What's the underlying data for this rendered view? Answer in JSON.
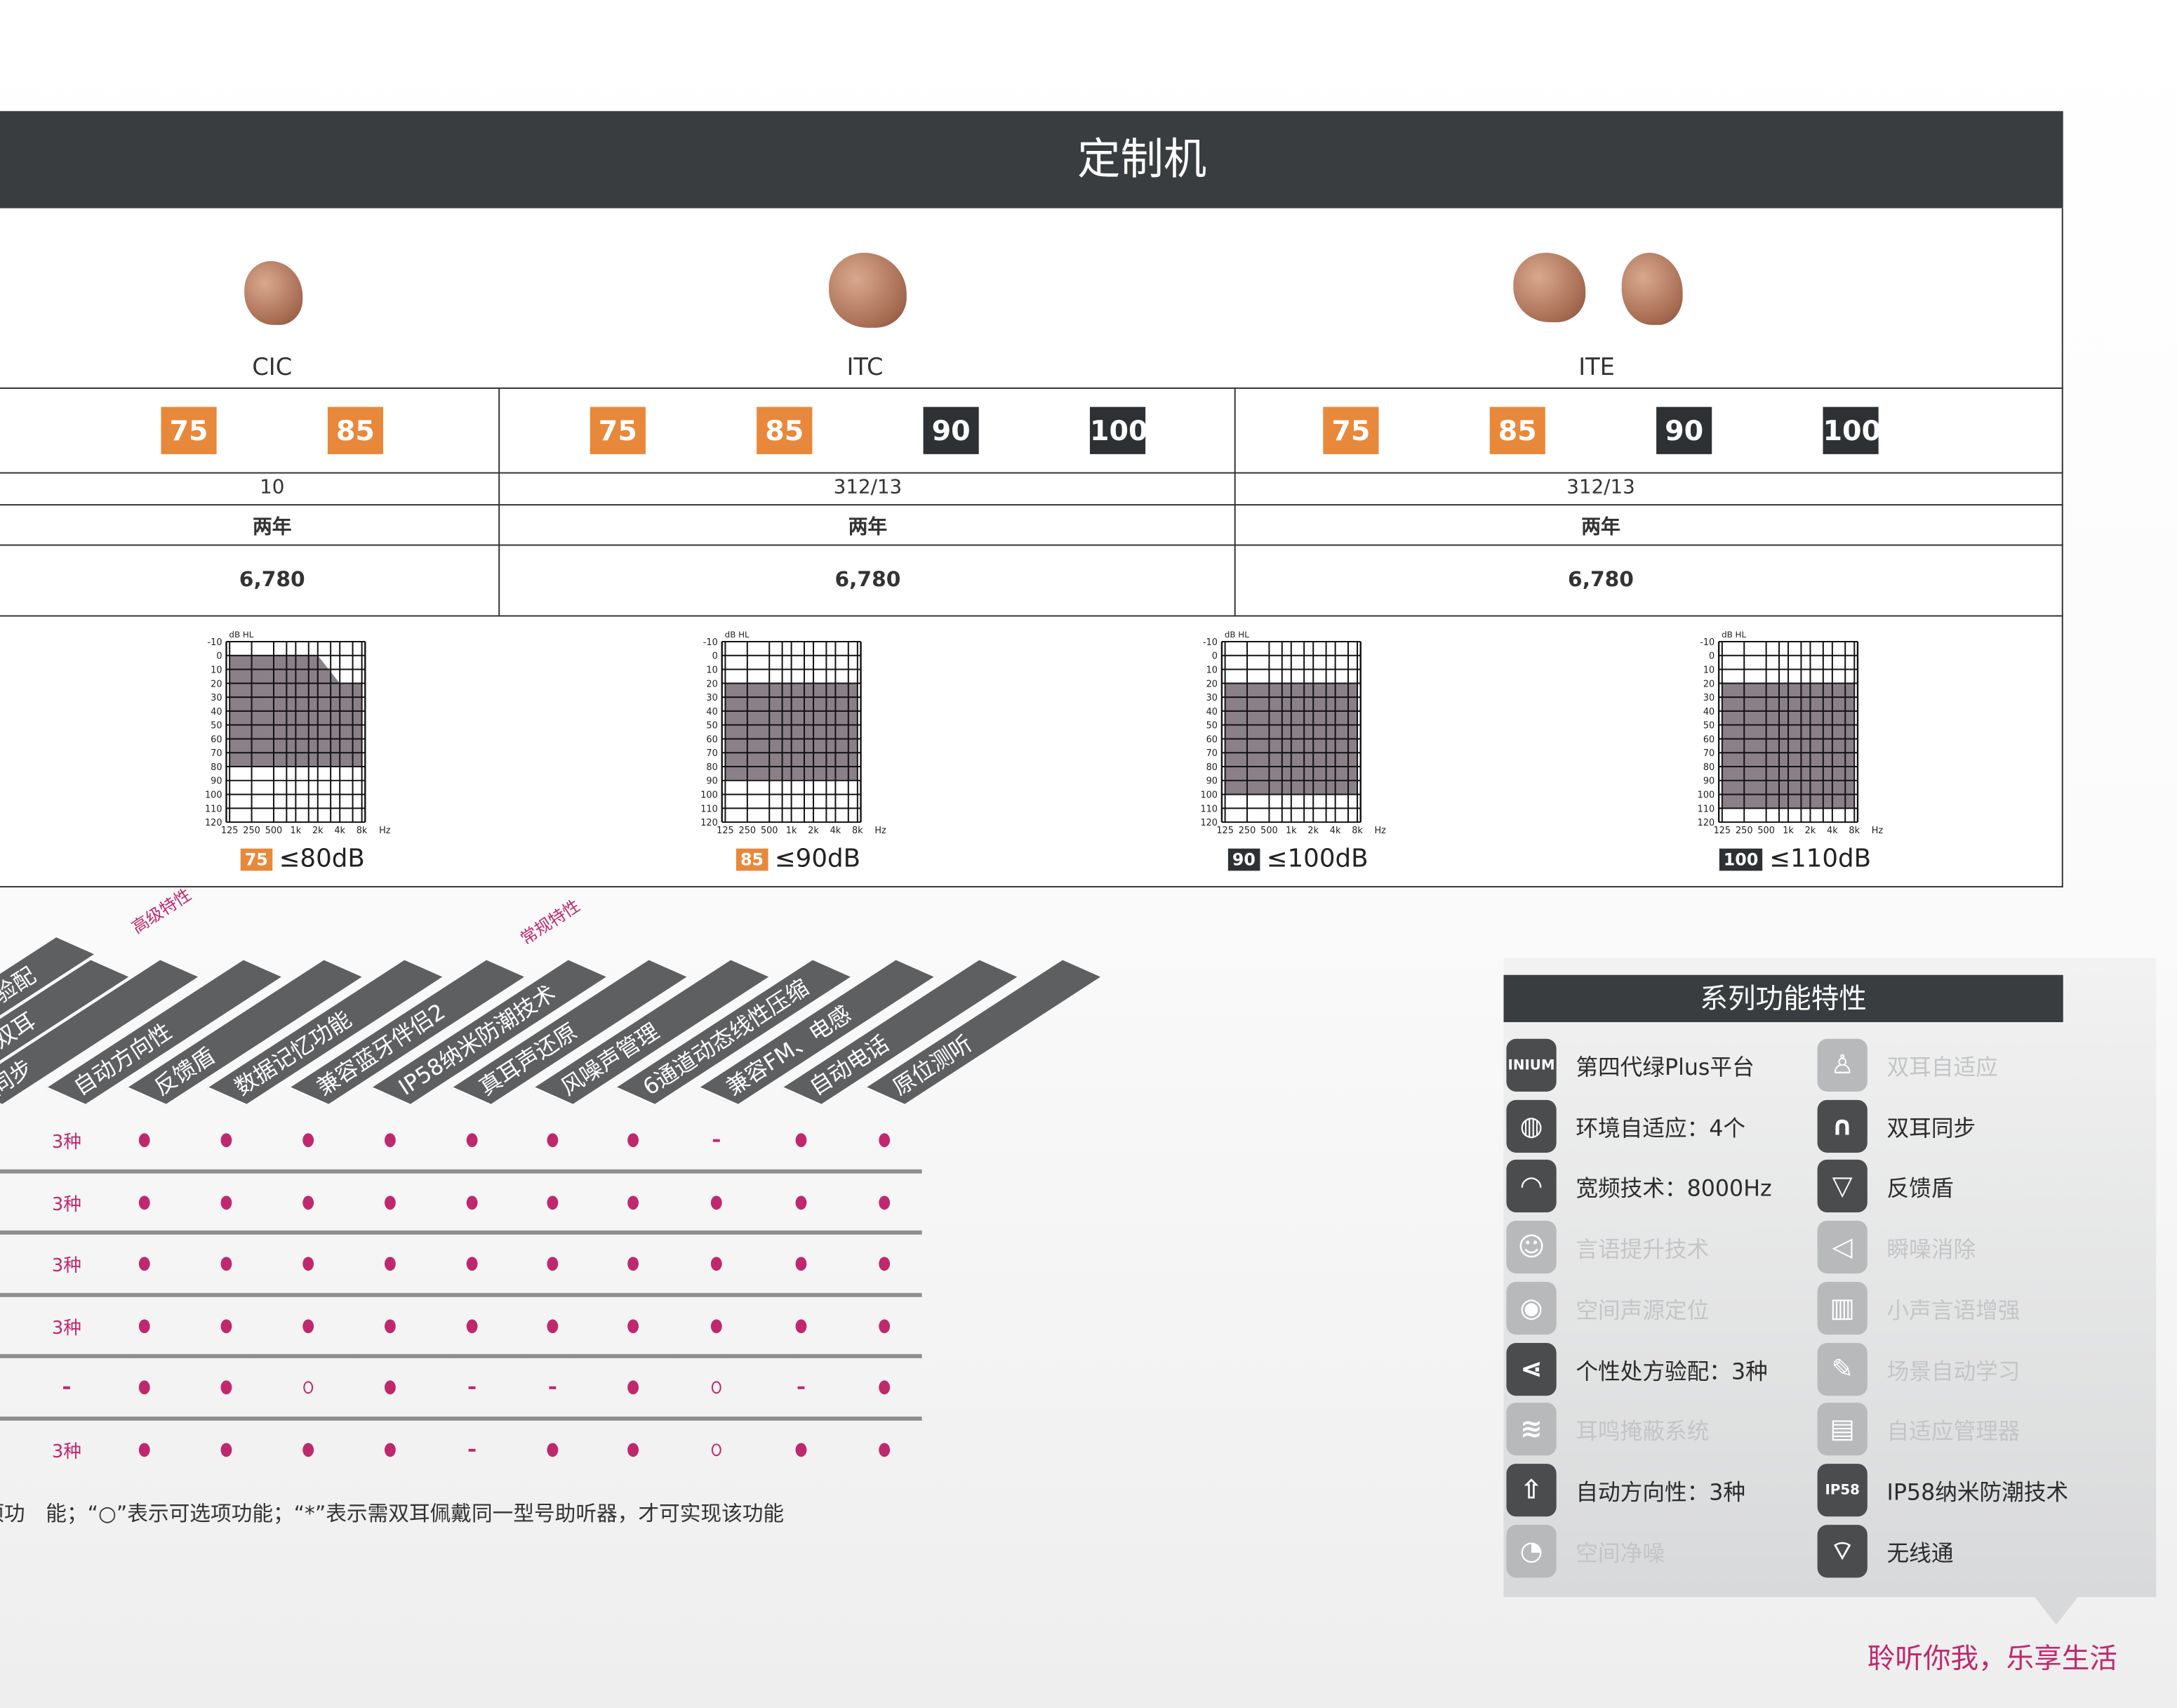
{
  "header": {
    "title": "定制机"
  },
  "products": [
    {
      "name": "CIC",
      "badges": [
        {
          "v": "75",
          "c": "orange"
        },
        {
          "v": "85",
          "c": "orange"
        }
      ],
      "battery": "10",
      "warranty": "两年",
      "price": "6,780"
    },
    {
      "name": "ITC",
      "badges": [
        {
          "v": "75",
          "c": "orange"
        },
        {
          "v": "85",
          "c": "orange"
        },
        {
          "v": "90",
          "c": "dark"
        },
        {
          "v": "100",
          "c": "dark"
        }
      ],
      "battery": "312/13",
      "warranty": "两年",
      "price": "6,780"
    },
    {
      "name": "ITE",
      "badges": [
        {
          "v": "75",
          "c": "orange"
        },
        {
          "v": "85",
          "c": "orange"
        },
        {
          "v": "90",
          "c": "dark"
        },
        {
          "v": "100",
          "c": "dark"
        }
      ],
      "battery": "312/13",
      "warranty": "两年",
      "price": "6,780"
    }
  ],
  "colors": {
    "orange": "#e8883a",
    "dark": "#2e3133",
    "accent": "#c0286e",
    "header": "#3a3d3f",
    "fill": "#8a8088"
  },
  "audiograms": {
    "unit_label": "dB HL",
    "hz_label": "Hz",
    "y_ticks": [
      "-10",
      "0",
      "10",
      "20",
      "30",
      "40",
      "50",
      "60",
      "70",
      "80",
      "90",
      "100",
      "110",
      "120"
    ],
    "x_ticks": [
      "125",
      "250",
      "500",
      "1k",
      "2k",
      "4k",
      "8k"
    ],
    "items": [
      {
        "badge": "75",
        "badge_color": "orange",
        "label": "≤80dB",
        "fill_top": [
          [
            125,
            0
          ],
          [
            2000,
            0
          ],
          [
            4000,
            20
          ],
          [
            8000,
            20
          ]
        ],
        "fill_bottom": 80
      },
      {
        "badge": "85",
        "badge_color": "orange",
        "label": "≤90dB",
        "fill_top": [
          [
            125,
            20
          ],
          [
            8000,
            20
          ]
        ],
        "fill_bottom": 90
      },
      {
        "badge": "90",
        "badge_color": "dark",
        "label": "≤100dB",
        "fill_top": [
          [
            125,
            20
          ],
          [
            8000,
            20
          ]
        ],
        "fill_bottom": 100
      },
      {
        "badge": "100",
        "badge_color": "dark",
        "label": "≤110dB",
        "fill_top": [
          [
            125,
            20
          ],
          [
            8000,
            20
          ]
        ],
        "fill_bottom": 110
      }
    ]
  },
  "features_table": {
    "group_labels": [
      "高级特性",
      "常规特性"
    ],
    "headers": [
      "验配",
      "双耳",
      "同步",
      "自动方向性",
      "反馈盾",
      "数据记忆功能",
      "兼容蓝牙伴侣2",
      "IP58纳米防潮技术",
      "真耳声还原",
      "风噪声管理",
      "6通道动态线性压缩",
      "兼容FM、电感",
      "自动电话",
      "原位测听"
    ],
    "rows": [
      [
        "3种",
        "●",
        "●",
        "●",
        "●",
        "●",
        "●",
        "●",
        "-",
        "●",
        "●"
      ],
      [
        "3种",
        "●",
        "●",
        "●",
        "●",
        "●",
        "●",
        "●",
        "●",
        "●",
        "●"
      ],
      [
        "3种",
        "●",
        "●",
        "●",
        "●",
        "●",
        "●",
        "●",
        "●",
        "●",
        "●"
      ],
      [
        "3种",
        "●",
        "●",
        "●",
        "●",
        "●",
        "●",
        "●",
        "●",
        "●",
        "●"
      ],
      [
        "-",
        "●",
        "●",
        "○",
        "●",
        "-",
        "-",
        "●",
        "○",
        "-",
        "●"
      ],
      [
        "3种",
        "●",
        "●",
        "●",
        "●",
        "-",
        "●",
        "●",
        "○",
        "●",
        "●"
      ]
    ],
    "footnote": "项功　能；“○”表示可选项功能；“*”表示需双耳佩戴同一型号助听器，才可实现该功能"
  },
  "series_features": {
    "title": "系列功能特性",
    "left": [
      {
        "icon": "inium-sense-icon",
        "glyph": "INIUM",
        "label": "第四代绿Plus平台",
        "active": true
      },
      {
        "icon": "globe-icon",
        "glyph": "◍",
        "label": "环境自适应：4个",
        "active": true
      },
      {
        "icon": "head-wave-icon",
        "glyph": "◠",
        "label": "宽频技术：8000Hz",
        "active": true
      },
      {
        "icon": "speech-plus-icon",
        "glyph": "☺",
        "label": "言语提升技术",
        "active": false
      },
      {
        "icon": "location-pin-icon",
        "glyph": "◉",
        "label": "空间声源定位",
        "active": false
      },
      {
        "icon": "share-nodes-icon",
        "glyph": "⋖",
        "label": "个性处方验配：3种",
        "active": true
      },
      {
        "icon": "waves-icon",
        "glyph": "≋",
        "label": "耳鸣掩蔽系统",
        "active": false
      },
      {
        "icon": "arrow-up-icon",
        "glyph": "⇧",
        "label": "自动方向性：3种",
        "active": true
      },
      {
        "icon": "signal-icon",
        "glyph": "◔",
        "label": "空间净噪",
        "active": false
      }
    ],
    "right": [
      {
        "icon": "person-icon",
        "glyph": "♙",
        "label": "双耳自适应",
        "active": false
      },
      {
        "icon": "headphones-icon",
        "glyph": "∩",
        "label": "双耳同步",
        "active": true
      },
      {
        "icon": "shield-icon",
        "glyph": "▽",
        "label": "反馈盾",
        "active": true
      },
      {
        "icon": "speaker-mute-icon",
        "glyph": "◁",
        "label": "瞬噪消除",
        "active": false
      },
      {
        "icon": "bars-plus-icon",
        "glyph": "▥",
        "label": "小声言语增强",
        "active": false
      },
      {
        "icon": "pencil-icon",
        "glyph": "✎",
        "label": "场景自动学习",
        "active": false
      },
      {
        "icon": "chart-box-icon",
        "glyph": "▤",
        "label": "自适应管理器",
        "active": false
      },
      {
        "icon": "ip58-icon",
        "glyph": "IP58",
        "label": "IP58纳米防潮技术",
        "active": true
      },
      {
        "icon": "satellite-dish-icon",
        "glyph": "⌔",
        "label": "无线通",
        "active": true
      }
    ]
  },
  "tagline": "聆听你我，乐享生活"
}
